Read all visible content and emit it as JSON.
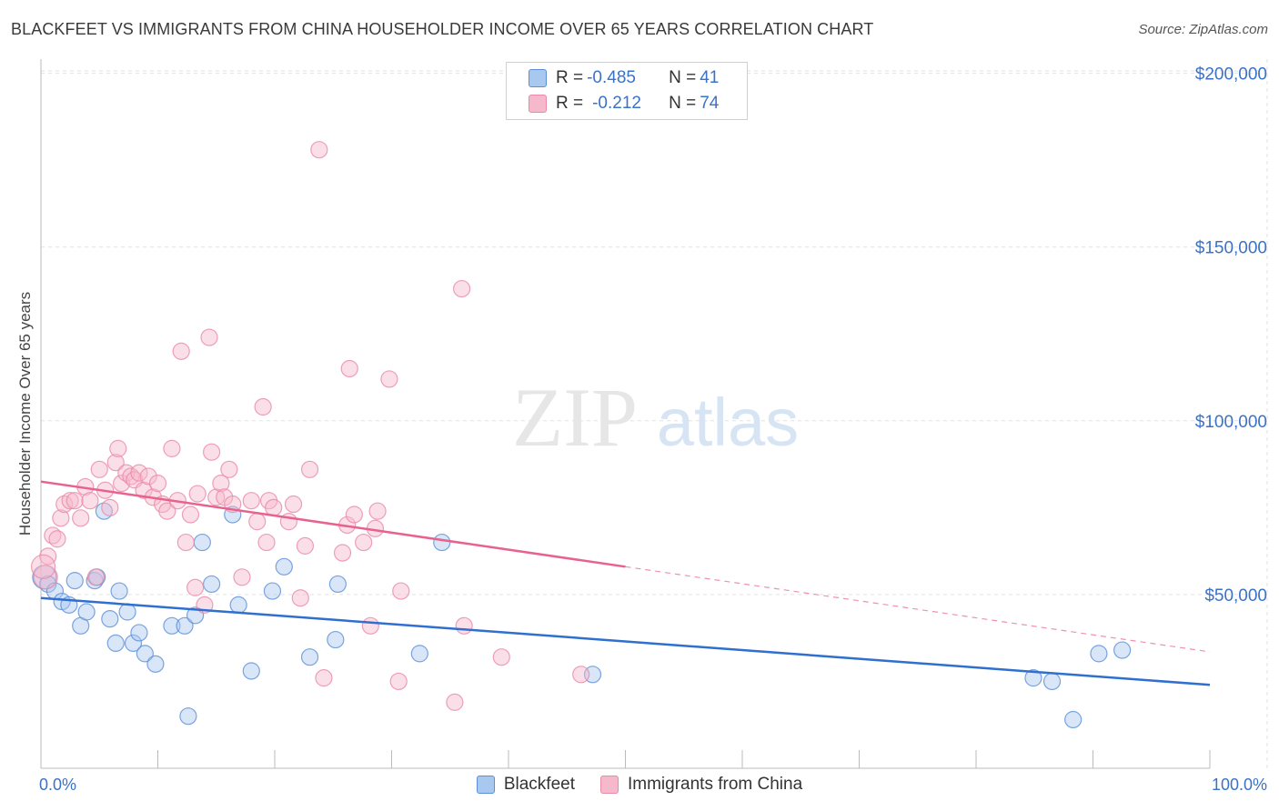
{
  "title": "BLACKFEET VS IMMIGRANTS FROM CHINA HOUSEHOLDER INCOME OVER 65 YEARS CORRELATION CHART",
  "source": "Source: ZipAtlas.com",
  "watermark": {
    "zip": "ZIP",
    "atlas": "atlas"
  },
  "legend": {
    "rows": [
      {
        "r_label": "R = ",
        "r_value": "-0.485",
        "n_label": "N = ",
        "n_value": "41"
      },
      {
        "r_label": "R = ",
        "r_value": "-0.212",
        "n_label": "N = ",
        "n_value": "74"
      }
    ]
  },
  "colors": {
    "blackfeet_fill": "#a8c8f0",
    "blackfeet_stroke": "#5b8fd8",
    "blackfeet_line": "#2f6fcf",
    "china_fill": "#f6b8cb",
    "china_stroke": "#e88aa8",
    "china_line": "#e8628e",
    "axis_text": "#3a72c8",
    "grid": "#e2e2e2"
  },
  "chart_data": {
    "type": "scatter",
    "title": "BLACKFEET VS IMMIGRANTS FROM CHINA HOUSEHOLDER INCOME OVER 65 YEARS CORRELATION CHART",
    "xlabel": "",
    "ylabel": "Householder Income Over 65 years",
    "xlim": [
      0,
      100
    ],
    "ylim": [
      0,
      210000
    ],
    "x_tick_labels": [
      "0.0%",
      "100.0%"
    ],
    "y_ticks": [
      50000,
      100000,
      150000,
      200000
    ],
    "y_tick_labels": [
      "$50,000",
      "$100,000",
      "$150,000",
      "$200,000"
    ],
    "grid": true,
    "legend_position": "top-center",
    "series": [
      {
        "name": "Blackfeet",
        "r": -0.485,
        "n": 41,
        "trend": {
          "x": [
            0,
            100
          ],
          "y": [
            49000,
            24000
          ]
        },
        "points": [
          [
            0.3,
            55000
          ],
          [
            0.6,
            53000
          ],
          [
            1.2,
            51000
          ],
          [
            1.8,
            48000
          ],
          [
            2.4,
            47000
          ],
          [
            2.9,
            54000
          ],
          [
            3.4,
            41000
          ],
          [
            3.9,
            45000
          ],
          [
            4.6,
            54000
          ],
          [
            4.8,
            55000
          ],
          [
            5.4,
            74000
          ],
          [
            5.9,
            43000
          ],
          [
            6.4,
            36000
          ],
          [
            6.7,
            51000
          ],
          [
            7.4,
            45000
          ],
          [
            7.9,
            36000
          ],
          [
            8.4,
            39000
          ],
          [
            8.9,
            33000
          ],
          [
            9.8,
            30000
          ],
          [
            11.2,
            41000
          ],
          [
            12.3,
            41000
          ],
          [
            12.6,
            15000
          ],
          [
            13.2,
            44000
          ],
          [
            13.8,
            65000
          ],
          [
            14.6,
            53000
          ],
          [
            16.4,
            73000
          ],
          [
            16.9,
            47000
          ],
          [
            18.0,
            28000
          ],
          [
            19.8,
            51000
          ],
          [
            20.8,
            58000
          ],
          [
            23.0,
            32000
          ],
          [
            25.2,
            37000
          ],
          [
            25.4,
            53000
          ],
          [
            32.4,
            33000
          ],
          [
            34.3,
            65000
          ],
          [
            47.2,
            27000
          ],
          [
            84.9,
            26000
          ],
          [
            86.5,
            25000
          ],
          [
            88.3,
            14000
          ],
          [
            90.5,
            33000
          ],
          [
            92.5,
            34000
          ]
        ]
      },
      {
        "name": "Immigrants from China",
        "r": -0.212,
        "n": 74,
        "trend": {
          "x": [
            0,
            50
          ],
          "y": [
            82500,
            58000
          ]
        },
        "trend_dashed": {
          "x": [
            50,
            100
          ],
          "y": [
            58000,
            33500
          ]
        },
        "points": [
          [
            0.4,
            55000
          ],
          [
            0.6,
            61000
          ],
          [
            1.0,
            67000
          ],
          [
            1.4,
            66000
          ],
          [
            1.7,
            72000
          ],
          [
            2.0,
            76000
          ],
          [
            2.5,
            77000
          ],
          [
            2.9,
            77000
          ],
          [
            3.4,
            72000
          ],
          [
            3.8,
            81000
          ],
          [
            4.2,
            77000
          ],
          [
            4.7,
            55000
          ],
          [
            5.0,
            86000
          ],
          [
            5.5,
            80000
          ],
          [
            5.9,
            75000
          ],
          [
            6.4,
            88000
          ],
          [
            6.6,
            92000
          ],
          [
            6.9,
            82000
          ],
          [
            7.3,
            85000
          ],
          [
            7.7,
            84000
          ],
          [
            8.0,
            83000
          ],
          [
            8.4,
            85000
          ],
          [
            8.8,
            80000
          ],
          [
            9.2,
            84000
          ],
          [
            9.6,
            78000
          ],
          [
            10.0,
            82000
          ],
          [
            10.4,
            76000
          ],
          [
            10.8,
            74000
          ],
          [
            11.2,
            92000
          ],
          [
            11.7,
            77000
          ],
          [
            12.0,
            120000
          ],
          [
            12.4,
            65000
          ],
          [
            12.8,
            73000
          ],
          [
            13.2,
            52000
          ],
          [
            13.4,
            79000
          ],
          [
            14.0,
            47000
          ],
          [
            14.4,
            124000
          ],
          [
            14.6,
            91000
          ],
          [
            15.0,
            78000
          ],
          [
            15.4,
            82000
          ],
          [
            15.7,
            78000
          ],
          [
            16.1,
            86000
          ],
          [
            16.4,
            76000
          ],
          [
            17.2,
            55000
          ],
          [
            18.0,
            77000
          ],
          [
            18.5,
            71000
          ],
          [
            19.0,
            104000
          ],
          [
            19.3,
            65000
          ],
          [
            19.5,
            77000
          ],
          [
            19.9,
            75000
          ],
          [
            21.2,
            71000
          ],
          [
            21.6,
            76000
          ],
          [
            22.2,
            49000
          ],
          [
            22.6,
            64000
          ],
          [
            23.0,
            86000
          ],
          [
            23.8,
            178000
          ],
          [
            24.2,
            26000
          ],
          [
            25.8,
            62000
          ],
          [
            26.2,
            70000
          ],
          [
            26.4,
            115000
          ],
          [
            26.8,
            73000
          ],
          [
            27.6,
            65000
          ],
          [
            28.2,
            41000
          ],
          [
            28.6,
            69000
          ],
          [
            28.8,
            74000
          ],
          [
            29.8,
            112000
          ],
          [
            30.6,
            25000
          ],
          [
            30.8,
            51000
          ],
          [
            35.4,
            19000
          ],
          [
            36.0,
            138000
          ],
          [
            36.2,
            41000
          ],
          [
            39.4,
            32000
          ],
          [
            46.2,
            27000
          ],
          [
            0.2,
            58000
          ]
        ]
      }
    ]
  }
}
